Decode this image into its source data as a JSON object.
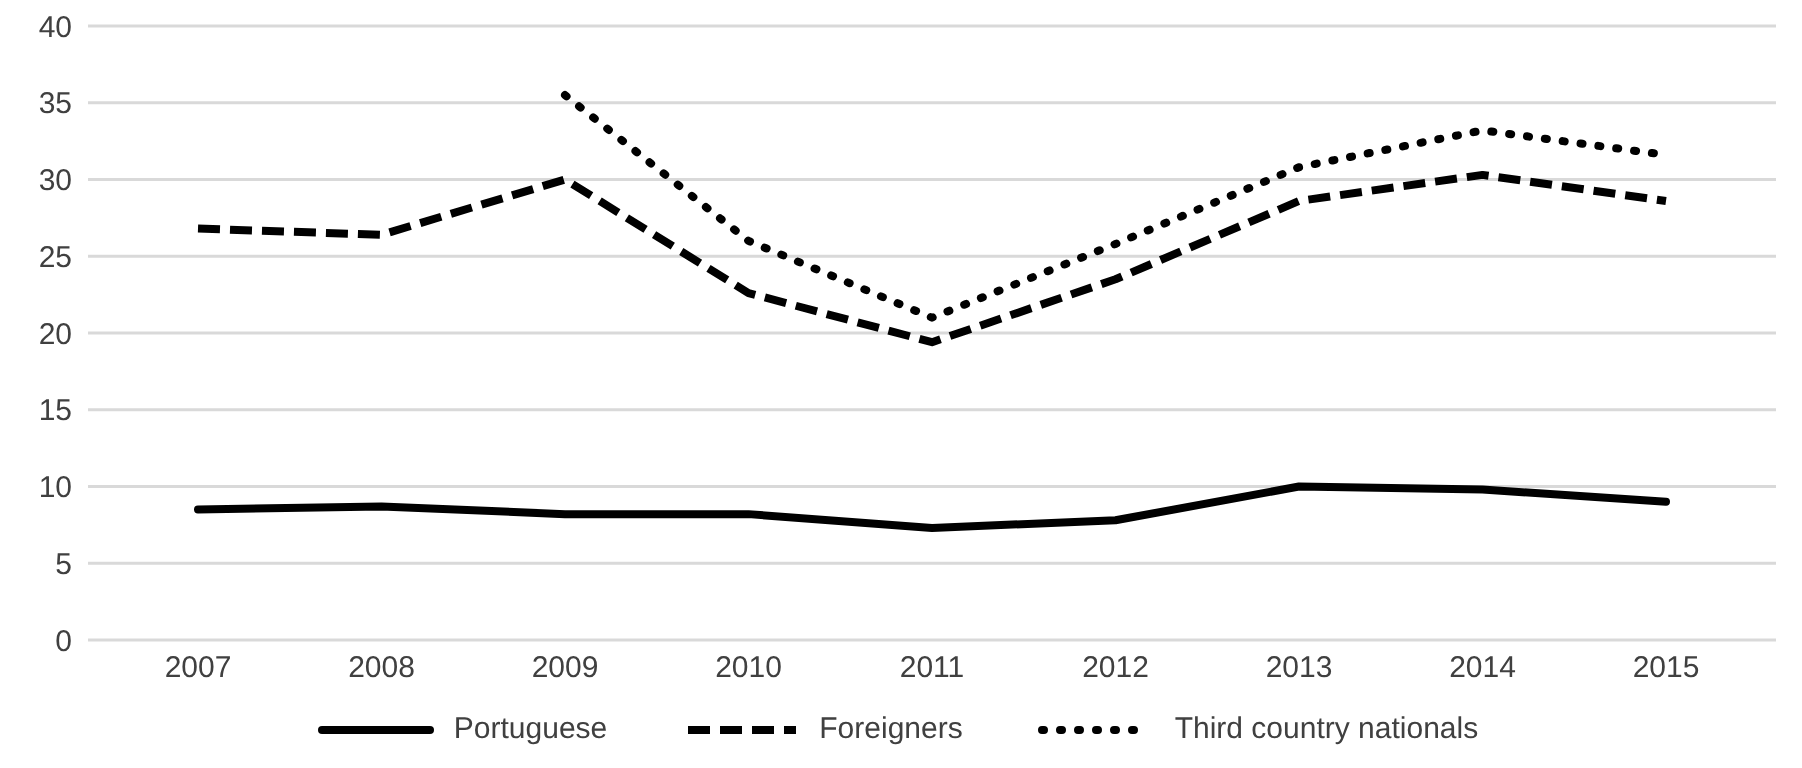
{
  "chart_data": {
    "type": "line",
    "categories": [
      "2007",
      "2008",
      "2009",
      "2010",
      "2011",
      "2012",
      "2013",
      "2014",
      "2015"
    ],
    "series": [
      {
        "name": "Portuguese",
        "color": "#000000",
        "line_style": "solid",
        "values": [
          8.5,
          8.7,
          8.2,
          8.2,
          7.3,
          7.8,
          10.0,
          9.8,
          9.0
        ]
      },
      {
        "name": "Foreigners",
        "color": "#000000",
        "line_style": "dashed",
        "values": [
          26.8,
          26.4,
          30.0,
          22.6,
          19.4,
          23.5,
          28.6,
          30.3,
          28.6
        ]
      },
      {
        "name": "Third country nationals",
        "color": "#000000",
        "line_style": "dotted",
        "values": [
          null,
          null,
          35.5,
          26.0,
          21.0,
          25.8,
          30.8,
          33.2,
          31.6
        ]
      }
    ],
    "ylim": [
      0,
      40
    ],
    "yticks": [
      0,
      5,
      10,
      15,
      20,
      25,
      30,
      35,
      40
    ],
    "grid": "y",
    "legend": "bottom",
    "marker": "none"
  }
}
